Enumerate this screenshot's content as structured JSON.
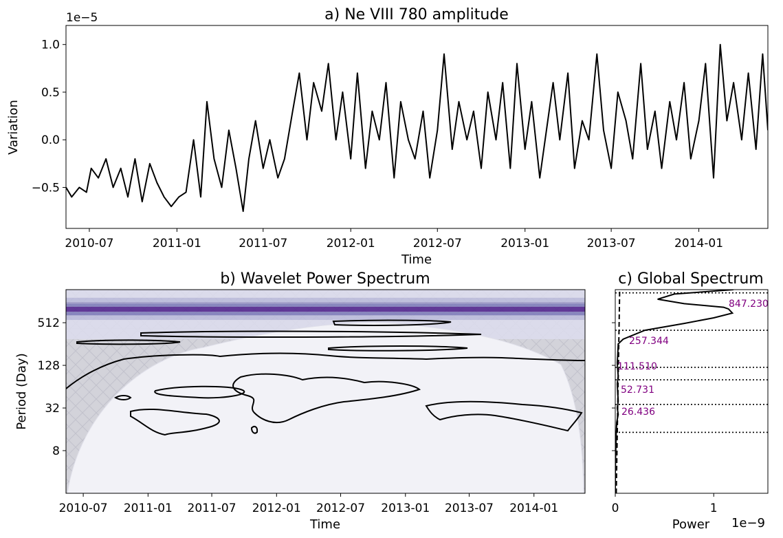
{
  "chart_data": [
    {
      "type": "line",
      "title": "a) Ne VIII 780 amplitude",
      "xlabel": "Time",
      "ylabel": "Variation",
      "y_scale_label": "1e−5",
      "x_tick_labels": [
        "2010-07",
        "2011-01",
        "2011-07",
        "2012-01",
        "2012-07",
        "2013-01",
        "2013-07",
        "2014-01"
      ],
      "y_tick_labels": [
        "−0.5",
        "0.0",
        "0.5",
        "1.0"
      ],
      "y_ticks": [
        -0.5,
        0.0,
        0.5,
        1.0
      ],
      "ylim": [
        -0.93,
        1.2
      ],
      "x_range": [
        "2010-05-13",
        "2014-05-26"
      ],
      "series": [
        {
          "color": "#000000",
          "x": [
            "2010-05-13",
            "2010-05-25",
            "2010-06-10",
            "2010-06-25",
            "2010-07-05",
            "2010-07-20",
            "2010-08-05",
            "2010-08-20",
            "2010-09-05",
            "2010-09-20",
            "2010-10-05",
            "2010-10-20",
            "2010-11-05",
            "2010-11-20",
            "2010-12-05",
            "2010-12-20",
            "2011-01-05",
            "2011-01-20",
            "2011-02-05",
            "2011-02-20",
            "2011-03-05",
            "2011-03-20",
            "2011-04-05",
            "2011-04-20",
            "2011-05-05",
            "2011-05-20",
            "2011-06-01",
            "2011-06-15",
            "2011-07-01",
            "2011-07-15",
            "2011-08-01",
            "2011-08-15",
            "2011-09-01",
            "2011-09-15",
            "2011-10-01",
            "2011-10-15",
            "2011-11-01",
            "2011-11-15",
            "2011-12-01",
            "2011-12-15",
            "2012-01-01",
            "2012-01-15",
            "2012-02-01",
            "2012-02-15",
            "2012-03-01",
            "2012-03-15",
            "2012-04-01",
            "2012-04-15",
            "2012-05-01",
            "2012-05-15",
            "2012-06-01",
            "2012-06-15",
            "2012-07-01",
            "2012-07-15",
            "2012-08-01",
            "2012-08-15",
            "2012-09-01",
            "2012-09-15",
            "2012-10-01",
            "2012-10-15",
            "2012-11-01",
            "2012-11-15",
            "2012-12-01",
            "2012-12-15",
            "2013-01-01",
            "2013-01-15",
            "2013-02-01",
            "2013-02-15",
            "2013-03-01",
            "2013-03-15",
            "2013-04-01",
            "2013-04-15",
            "2013-05-01",
            "2013-05-15",
            "2013-06-01",
            "2013-06-15",
            "2013-07-01",
            "2013-07-15",
            "2013-08-01",
            "2013-08-15",
            "2013-09-01",
            "2013-09-15",
            "2013-10-01",
            "2013-10-15",
            "2013-11-01",
            "2013-11-15",
            "2013-12-01",
            "2013-12-15",
            "2014-01-01",
            "2014-01-15",
            "2014-02-01",
            "2014-02-15",
            "2014-03-01",
            "2014-03-15",
            "2014-04-01",
            "2014-04-15",
            "2014-05-01",
            "2014-05-15",
            "2014-05-26"
          ],
          "values": [
            -0.5,
            -0.6,
            -0.5,
            -0.55,
            -0.3,
            -0.4,
            -0.2,
            -0.5,
            -0.3,
            -0.6,
            -0.2,
            -0.65,
            -0.25,
            -0.45,
            -0.6,
            -0.7,
            -0.6,
            -0.55,
            0.0,
            -0.6,
            0.4,
            -0.2,
            -0.5,
            0.1,
            -0.3,
            -0.75,
            -0.2,
            0.2,
            -0.3,
            0.0,
            -0.4,
            -0.2,
            0.3,
            0.7,
            0.0,
            0.6,
            0.3,
            0.8,
            0.0,
            0.5,
            -0.2,
            0.7,
            -0.3,
            0.3,
            0.0,
            0.6,
            -0.4,
            0.4,
            0.0,
            -0.2,
            0.3,
            -0.4,
            0.1,
            0.9,
            -0.1,
            0.4,
            0.0,
            0.3,
            -0.3,
            0.5,
            0.0,
            0.6,
            -0.3,
            0.8,
            -0.1,
            0.4,
            -0.4,
            0.1,
            0.6,
            0.0,
            0.7,
            -0.3,
            0.2,
            0.0,
            0.9,
            0.1,
            -0.3,
            0.5,
            0.2,
            -0.2,
            0.8,
            -0.1,
            0.3,
            -0.3,
            0.4,
            0.0,
            0.6,
            -0.2,
            0.2,
            0.8,
            -0.4,
            1.0,
            0.2,
            0.6,
            0.0,
            0.7,
            -0.1,
            0.9,
            0.1
          ]
        }
      ]
    },
    {
      "type": "heatmap",
      "title": "b) Wavelet Power Spectrum",
      "xlabel": "Time",
      "ylabel": "Period (Day)",
      "x_tick_labels": [
        "2010-07",
        "2011-01",
        "2011-07",
        "2012-01",
        "2012-07",
        "2013-01",
        "2013-07",
        "2014-01"
      ],
      "y_tick_labels": [
        "8",
        "32",
        "128",
        "512"
      ],
      "y_ticks": [
        8,
        32,
        128,
        512
      ],
      "y_scale": "log2",
      "ylim": [
        2,
        1500
      ],
      "peak_band_period_days": [
        650,
        950
      ],
      "colormap": [
        "#f2f2f7",
        "#dcdcec",
        "#bcbddc",
        "#9e9ac8",
        "#807dba",
        "#6a51a3",
        "#54278f"
      ],
      "cone_of_influence": true,
      "hatch_color": "#c9c9d4"
    },
    {
      "type": "line",
      "title": "c) Global Spectrum",
      "xlabel": "Power",
      "x_scale_label": "1e−9",
      "x_tick_labels": [
        "0",
        "1"
      ],
      "x_ticks": [
        0,
        1
      ],
      "xlim": [
        0,
        1.55
      ],
      "y_scale": "log2",
      "ylim": [
        2,
        1500
      ],
      "periods": [
        2,
        4,
        8,
        14,
        20,
        26,
        32,
        40,
        52,
        70,
        90,
        111,
        140,
        180,
        257,
        300,
        400,
        500,
        600,
        700,
        800,
        847,
        950,
        1100,
        1300,
        1500
      ],
      "power": [
        0.0,
        0.0,
        0.005,
        0.01,
        0.015,
        0.03,
        0.02,
        0.03,
        0.025,
        0.02,
        0.03,
        0.025,
        0.02,
        0.025,
        0.03,
        0.08,
        0.3,
        0.7,
        1.0,
        1.19,
        1.15,
        1.1,
        0.7,
        0.43,
        0.6,
        1.2
      ],
      "significance_line": true,
      "peaks": [
        847.23,
        257.344,
        111.51,
        52.731,
        26.436
      ],
      "peak_labels": [
        "847.230",
        "257.344",
        "111.510",
        "52.731",
        "26.436"
      ],
      "dotted_line_periods": [
        1350,
        400,
        120,
        80,
        36,
        14.5
      ],
      "annotation_color": "#800080"
    }
  ]
}
